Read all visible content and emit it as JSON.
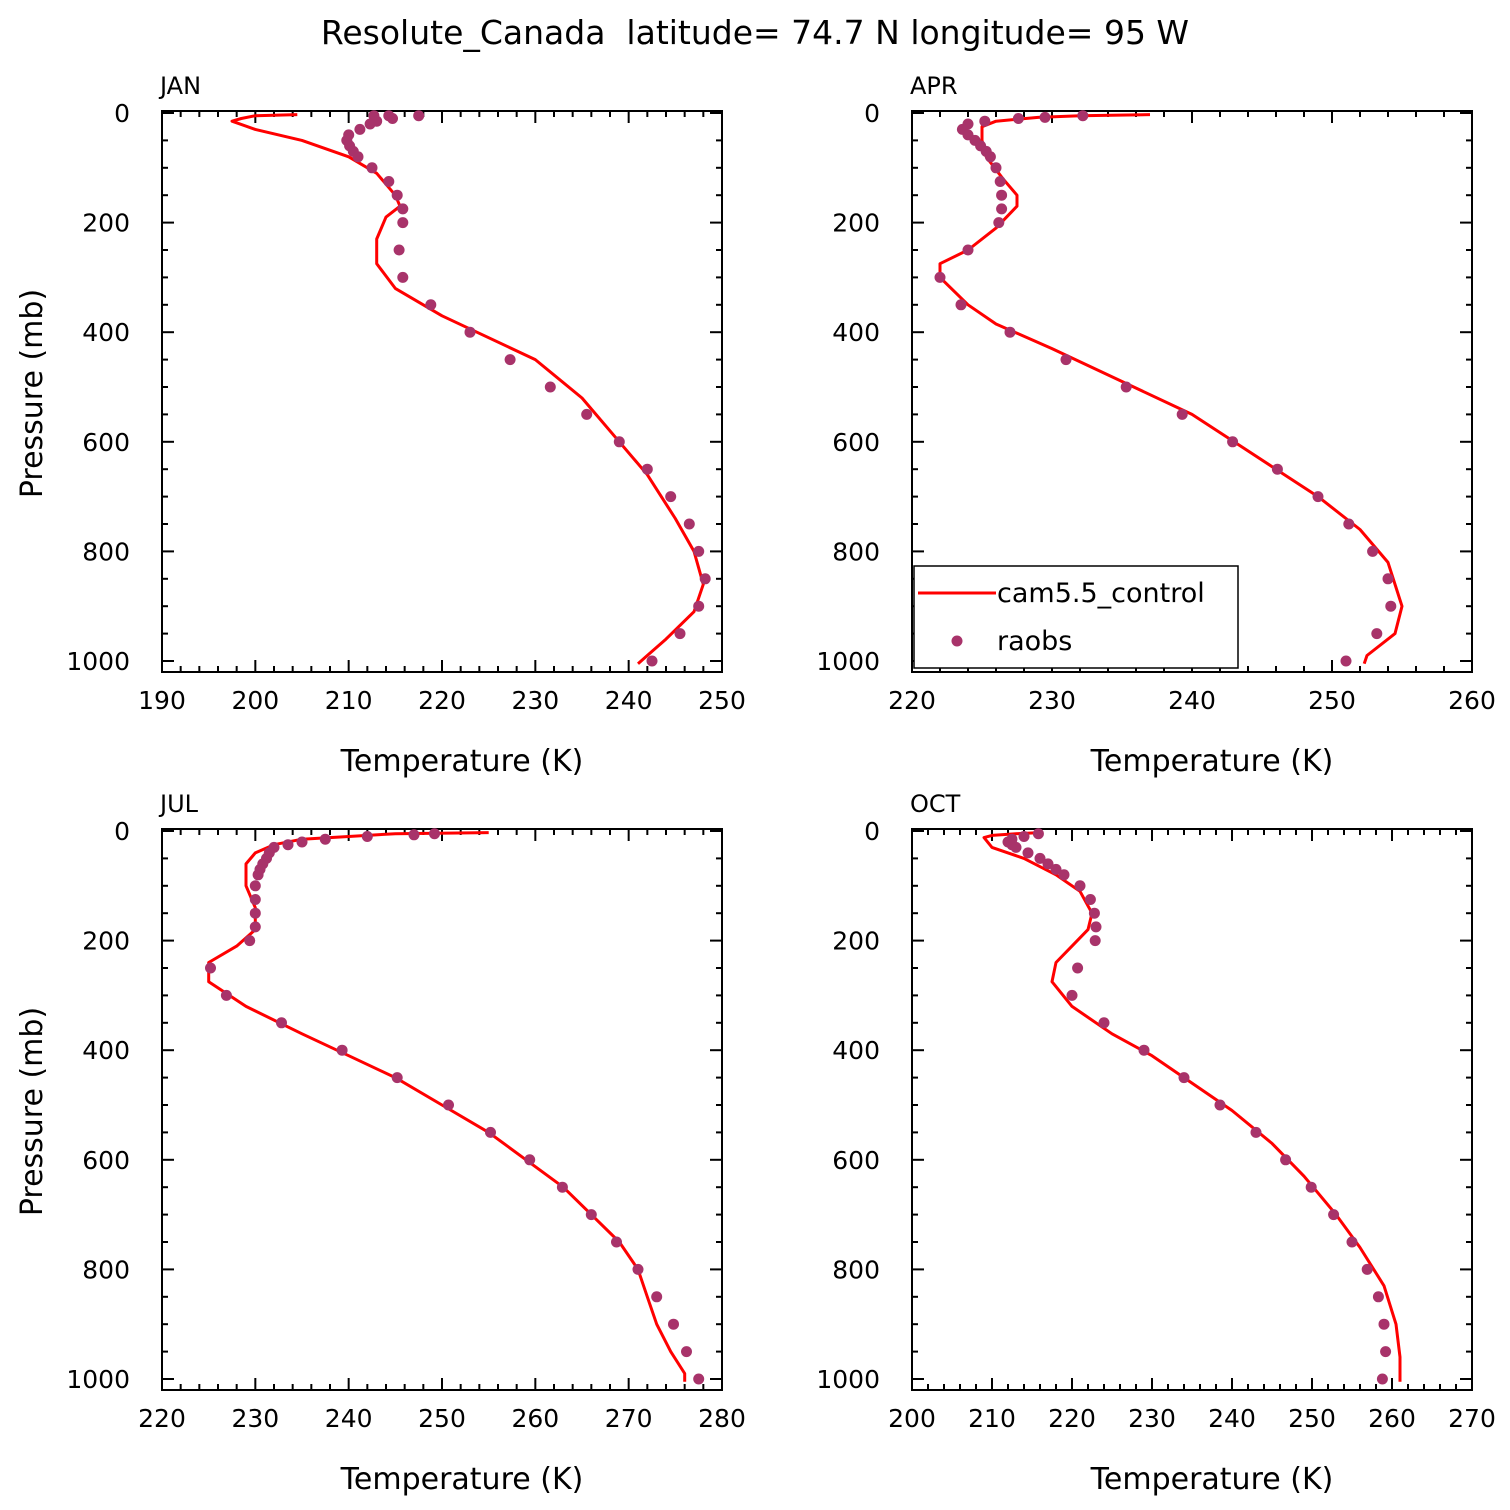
{
  "title": "Resolute_Canada  latitude= 74.7 N longitude= 95 W",
  "colors": {
    "model": "#ff0000",
    "obs": "#a8336a"
  },
  "chart_data": [
    {
      "type": "line",
      "panel": "JAN",
      "xlabel": "Temperature (K)",
      "ylabel": "Pressure (mb)",
      "xlim": [
        190,
        250
      ],
      "xticks": [
        190,
        200,
        210,
        220,
        230,
        240,
        250
      ],
      "ylim": [
        1000,
        0
      ],
      "yticks": [
        0,
        200,
        400,
        600,
        800,
        1000
      ],
      "series": [
        {
          "name": "cam5.5_control",
          "kind": "line",
          "points": [
            [
              204.5,
              3
            ],
            [
              200,
              5
            ],
            [
              198.5,
              10
            ],
            [
              197.5,
              15
            ],
            [
              200,
              30
            ],
            [
              205,
              50
            ],
            [
              210,
              80
            ],
            [
              213,
              110
            ],
            [
              215,
              150
            ],
            [
              215.5,
              170
            ],
            [
              214,
              190
            ],
            [
              213,
              230
            ],
            [
              213,
              275
            ],
            [
              215,
              320
            ],
            [
              220,
              370
            ],
            [
              230,
              450
            ],
            [
              235,
              520
            ],
            [
              239,
              600
            ],
            [
              242,
              660
            ],
            [
              245,
              740
            ],
            [
              247,
              800
            ],
            [
              248,
              860
            ],
            [
              247,
              910
            ],
            [
              244,
              960
            ],
            [
              242,
              990
            ],
            [
              241,
              1005
            ]
          ]
        },
        {
          "name": "raobs",
          "kind": "points",
          "points": [
            [
              217.5,
              5
            ],
            [
              214.3,
              5
            ],
            [
              214.7,
              10
            ],
            [
              212.7,
              5
            ],
            [
              213,
              15
            ],
            [
              212.3,
              20
            ],
            [
              211.2,
              30
            ],
            [
              210,
              40
            ],
            [
              209.8,
              50
            ],
            [
              210.1,
              60
            ],
            [
              210.5,
              70
            ],
            [
              211,
              80
            ],
            [
              212.5,
              100
            ],
            [
              214.3,
              125
            ],
            [
              215.2,
              150
            ],
            [
              215.8,
              175
            ],
            [
              215.8,
              200
            ],
            [
              215.4,
              250
            ],
            [
              215.8,
              300
            ],
            [
              218.8,
              350
            ],
            [
              223,
              400
            ],
            [
              227.3,
              450
            ],
            [
              231.6,
              500
            ],
            [
              235.5,
              550
            ],
            [
              239,
              600
            ],
            [
              242,
              650
            ],
            [
              244.5,
              700
            ],
            [
              246.5,
              750
            ],
            [
              247.5,
              800
            ],
            [
              248.2,
              850
            ],
            [
              247.5,
              900
            ],
            [
              245.5,
              950
            ],
            [
              242.5,
              1000
            ]
          ]
        }
      ]
    },
    {
      "type": "line",
      "panel": "APR",
      "xlabel": "Temperature (K)",
      "ylabel": "",
      "xlim": [
        220,
        260
      ],
      "xticks": [
        220,
        230,
        240,
        250,
        260
      ],
      "ylim": [
        1000,
        0
      ],
      "yticks": [
        0,
        200,
        400,
        600,
        800,
        1000
      ],
      "series": [
        {
          "name": "cam5.5_control",
          "kind": "line",
          "points": [
            [
              237,
              3
            ],
            [
              232,
              5
            ],
            [
              229,
              8
            ],
            [
              226,
              15
            ],
            [
              225,
              25
            ],
            [
              225,
              50
            ],
            [
              225.3,
              80
            ],
            [
              226.5,
              120
            ],
            [
              227.5,
              150
            ],
            [
              227.5,
              170
            ],
            [
              226,
              210
            ],
            [
              224,
              250
            ],
            [
              222,
              275
            ],
            [
              222,
              300
            ],
            [
              224,
              350
            ],
            [
              226,
              385
            ],
            [
              230,
              430
            ],
            [
              235,
              490
            ],
            [
              240,
              550
            ],
            [
              243,
              600
            ],
            [
              246,
              650
            ],
            [
              249,
              700
            ],
            [
              252,
              760
            ],
            [
              254,
              820
            ],
            [
              255,
              900
            ],
            [
              254.5,
              950
            ],
            [
              252.5,
              990
            ],
            [
              252.3,
              1005
            ]
          ]
        },
        {
          "name": "raobs",
          "kind": "points",
          "points": [
            [
              232.2,
              5
            ],
            [
              229.5,
              8
            ],
            [
              227.6,
              10
            ],
            [
              225.2,
              15
            ],
            [
              224,
              20
            ],
            [
              223.6,
              30
            ],
            [
              224,
              40
            ],
            [
              224.5,
              50
            ],
            [
              224.9,
              60
            ],
            [
              225.3,
              70
            ],
            [
              225.6,
              80
            ],
            [
              226,
              100
            ],
            [
              226.3,
              125
            ],
            [
              226.4,
              150
            ],
            [
              226.4,
              175
            ],
            [
              226.2,
              200
            ],
            [
              224,
              250
            ],
            [
              222,
              300
            ],
            [
              223.5,
              350
            ],
            [
              227,
              400
            ],
            [
              231,
              450
            ],
            [
              235.3,
              500
            ],
            [
              239.3,
              550
            ],
            [
              242.9,
              600
            ],
            [
              246.1,
              650
            ],
            [
              249,
              700
            ],
            [
              251.2,
              750
            ],
            [
              252.9,
              800
            ],
            [
              254,
              850
            ],
            [
              254.2,
              900
            ],
            [
              253.2,
              950
            ],
            [
              251,
              1000
            ]
          ]
        }
      ]
    },
    {
      "type": "line",
      "panel": "JUL",
      "xlabel": "Temperature (K)",
      "ylabel": "Pressure (mb)",
      "xlim": [
        220,
        280
      ],
      "xticks": [
        220,
        230,
        240,
        250,
        260,
        270,
        280
      ],
      "ylim": [
        1000,
        0
      ],
      "yticks": [
        0,
        200,
        400,
        600,
        800,
        1000
      ],
      "series": [
        {
          "name": "cam5.5_control",
          "kind": "line",
          "points": [
            [
              255,
              3
            ],
            [
              245,
              5
            ],
            [
              240,
              10
            ],
            [
              235,
              15
            ],
            [
              232,
              25
            ],
            [
              230,
              40
            ],
            [
              229,
              60
            ],
            [
              229,
              100
            ],
            [
              230,
              140
            ],
            [
              230,
              180
            ],
            [
              228,
              210
            ],
            [
              225,
              240
            ],
            [
              225,
              275
            ],
            [
              229,
              320
            ],
            [
              235,
              370
            ],
            [
              240,
              410
            ],
            [
              245,
              450
            ],
            [
              250,
              500
            ],
            [
              255,
              550
            ],
            [
              259,
              600
            ],
            [
              263,
              650
            ],
            [
              266,
              700
            ],
            [
              269,
              750
            ],
            [
              271,
              800
            ],
            [
              272,
              850
            ],
            [
              273,
              900
            ],
            [
              274.5,
              950
            ],
            [
              276,
              990
            ],
            [
              276,
              1005
            ]
          ]
        },
        {
          "name": "raobs",
          "kind": "points",
          "points": [
            [
              249.2,
              5
            ],
            [
              247,
              7
            ],
            [
              242,
              10
            ],
            [
              237.5,
              15
            ],
            [
              235,
              20
            ],
            [
              233.5,
              25
            ],
            [
              232,
              30
            ],
            [
              231.5,
              40
            ],
            [
              231.2,
              50
            ],
            [
              230.8,
              60
            ],
            [
              230.5,
              70
            ],
            [
              230.3,
              80
            ],
            [
              230,
              100
            ],
            [
              230,
              125
            ],
            [
              230,
              150
            ],
            [
              230,
              175
            ],
            [
              229.4,
              200
            ],
            [
              225.2,
              250
            ],
            [
              226.9,
              300
            ],
            [
              232.8,
              350
            ],
            [
              239.3,
              400
            ],
            [
              245.2,
              450
            ],
            [
              250.7,
              500
            ],
            [
              255.2,
              550
            ],
            [
              259.4,
              600
            ],
            [
              262.9,
              650
            ],
            [
              266,
              700
            ],
            [
              268.7,
              750
            ],
            [
              271,
              800
            ],
            [
              273,
              850
            ],
            [
              274.8,
              900
            ],
            [
              276.2,
              950
            ],
            [
              277.5,
              1000
            ]
          ]
        }
      ]
    },
    {
      "type": "line",
      "panel": "OCT",
      "xlabel": "Temperature (K)",
      "ylabel": "",
      "xlim": [
        200,
        270
      ],
      "xticks": [
        200,
        210,
        220,
        230,
        240,
        250,
        260,
        270
      ],
      "ylim": [
        1000,
        0
      ],
      "yticks": [
        0,
        200,
        400,
        600,
        800,
        1000
      ],
      "series": [
        {
          "name": "cam5.5_control",
          "kind": "line",
          "points": [
            [
              216,
              3
            ],
            [
              213,
              5
            ],
            [
              210,
              8
            ],
            [
              209,
              12
            ],
            [
              210,
              30
            ],
            [
              214,
              50
            ],
            [
              218,
              80
            ],
            [
              221,
              110
            ],
            [
              222.5,
              150
            ],
            [
              222,
              180
            ],
            [
              220,
              210
            ],
            [
              218,
              240
            ],
            [
              217.5,
              275
            ],
            [
              220,
              320
            ],
            [
              225,
              370
            ],
            [
              230,
              410
            ],
            [
              235,
              460
            ],
            [
              240,
              510
            ],
            [
              245,
              570
            ],
            [
              249,
              630
            ],
            [
              253,
              700
            ],
            [
              256,
              760
            ],
            [
              259,
              830
            ],
            [
              260.5,
              900
            ],
            [
              261,
              960
            ],
            [
              261,
              1005
            ]
          ]
        },
        {
          "name": "raobs",
          "kind": "points",
          "points": [
            [
              215.8,
              5
            ],
            [
              214,
              10
            ],
            [
              212.5,
              15
            ],
            [
              212,
              20
            ],
            [
              212.5,
              25
            ],
            [
              213,
              30
            ],
            [
              214.5,
              40
            ],
            [
              216,
              50
            ],
            [
              217,
              60
            ],
            [
              218,
              70
            ],
            [
              219,
              80
            ],
            [
              221,
              100
            ],
            [
              222.3,
              125
            ],
            [
              222.8,
              150
            ],
            [
              223,
              175
            ],
            [
              222.9,
              200
            ],
            [
              220.7,
              250
            ],
            [
              220,
              300
            ],
            [
              224,
              350
            ],
            [
              229,
              400
            ],
            [
              234,
              450
            ],
            [
              238.5,
              500
            ],
            [
              243,
              550
            ],
            [
              246.7,
              600
            ],
            [
              249.9,
              650
            ],
            [
              252.7,
              700
            ],
            [
              255,
              750
            ],
            [
              256.9,
              800
            ],
            [
              258.3,
              850
            ],
            [
              259,
              900
            ],
            [
              259.2,
              950
            ],
            [
              258.8,
              1000
            ]
          ]
        }
      ]
    }
  ]
}
